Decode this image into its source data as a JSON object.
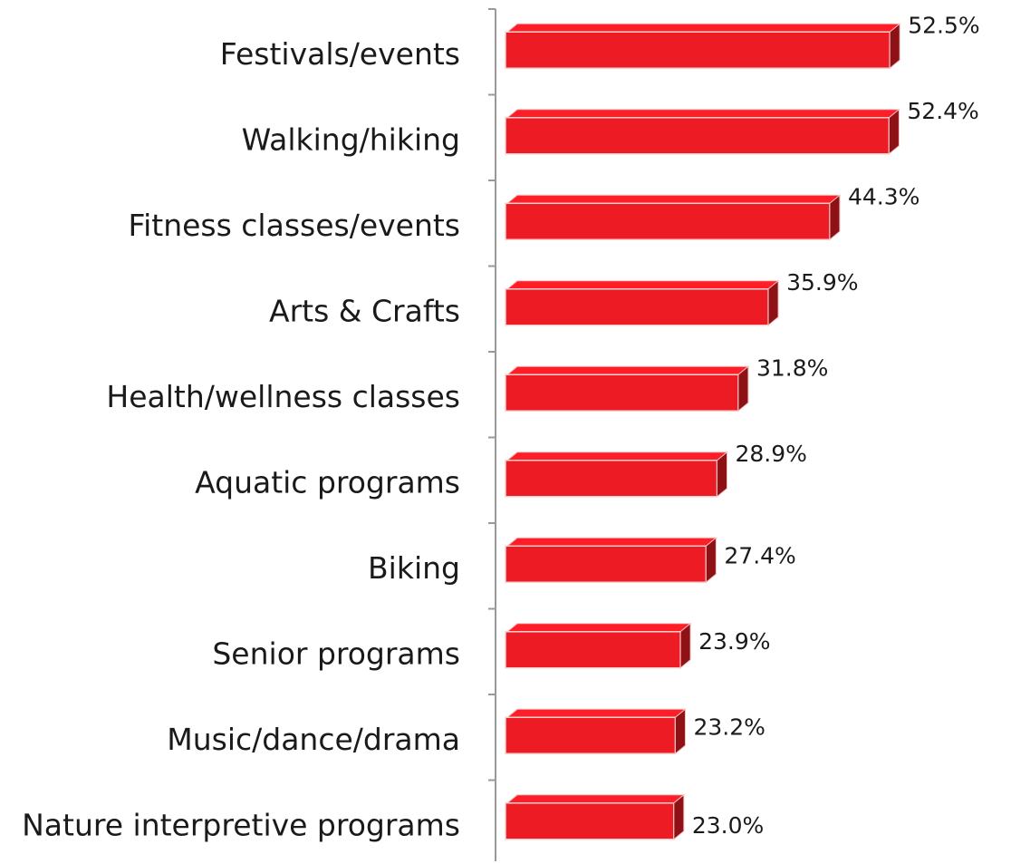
{
  "chart_data": {
    "type": "bar",
    "orientation": "horizontal",
    "categories": [
      "Festivals/events",
      "Walking/hiking",
      "Fitness classes/events",
      "Arts & Crafts",
      "Health/wellness classes",
      "Aquatic programs",
      "Biking",
      "Senior programs",
      "Music/dance/drama",
      "Nature interpretive programs"
    ],
    "values": [
      52.5,
      52.4,
      44.3,
      35.9,
      31.8,
      28.9,
      27.4,
      23.9,
      23.2,
      23.0
    ],
    "value_labels": [
      "52.5%",
      "52.4%",
      "44.3%",
      "35.9%",
      "31.8%",
      "28.9%",
      "27.4%",
      "23.9%",
      "23.2%",
      "23.0%"
    ],
    "color": "#ed1c24"
  }
}
